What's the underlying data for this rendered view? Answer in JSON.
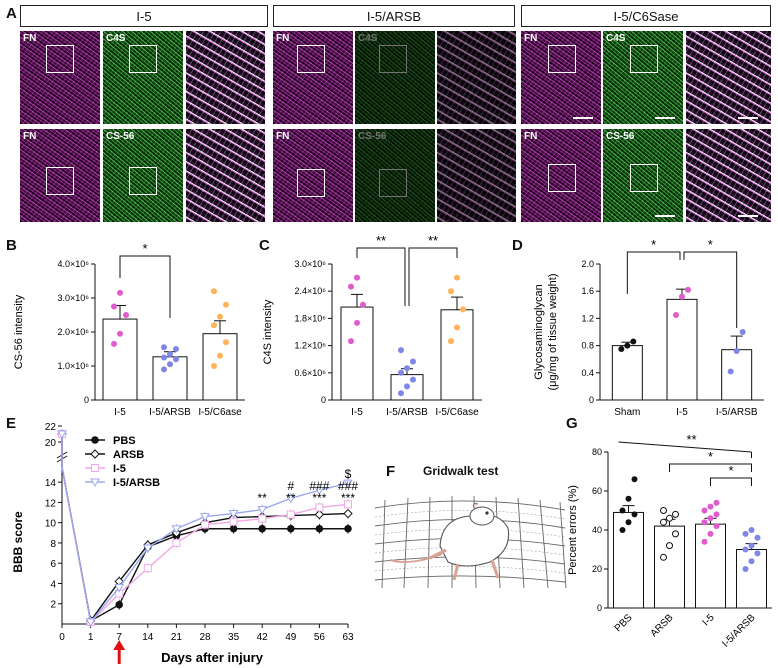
{
  "panel_letters": {
    "a": "A",
    "b": "B",
    "c": "C",
    "d": "D",
    "e": "E",
    "f": "F",
    "g": "G"
  },
  "panel_a": {
    "headers": [
      "I-5",
      "I-5/ARSB",
      "I-5/C6Sase"
    ],
    "labels": {
      "fn": "FN",
      "c4s": "C4S",
      "cs56": "CS-56"
    }
  },
  "panel_f": {
    "title": "Gridwalk test"
  },
  "chart_data": [
    {
      "id": "B",
      "type": "bar",
      "categories": [
        "I-5",
        "I-5/ARSB",
        "I-5/C6ase"
      ],
      "values": [
        2380000,
        1270000,
        1950000
      ],
      "errors": [
        400000,
        150000,
        380000
      ],
      "points": [
        [
          1650000,
          1950000,
          2500000,
          2750000,
          3150000
        ],
        [
          900000,
          1050000,
          1200000,
          1250000,
          1350000,
          1500000,
          1550000
        ],
        [
          1000000,
          1300000,
          1700000,
          2200000,
          2450000,
          2800000,
          3200000
        ]
      ],
      "ylabel": "CS-56 intensity",
      "yticks": [
        "0",
        "1.0×10⁶",
        "2.0×10⁶",
        "3.0×10⁶",
        "4.0×10⁶"
      ],
      "ylim": [
        0,
        4000000
      ],
      "annotations": [
        "*"
      ]
    },
    {
      "id": "C",
      "type": "bar",
      "categories": [
        "I-5",
        "I-5/ARSB",
        "I-5/C6ase"
      ],
      "values": [
        2050000,
        560000,
        1990000
      ],
      "errors": [
        280000,
        130000,
        280000
      ],
      "points": [
        [
          1300000,
          1700000,
          2100000,
          2500000,
          2700000
        ],
        [
          150000,
          300000,
          450000,
          600000,
          700000,
          850000,
          1100000
        ],
        [
          1300000,
          1600000,
          2000000,
          2400000,
          2700000
        ]
      ],
      "ylabel": "C4S intensity",
      "yticks": [
        "0",
        "0.6×10⁶",
        "1.2×10⁶",
        "1.8×10⁶",
        "2.4×10⁶",
        "3.0×10⁶"
      ],
      "ylim": [
        0,
        3000000
      ],
      "annotations": [
        "**",
        "**"
      ]
    },
    {
      "id": "D",
      "type": "bar",
      "categories": [
        "Sham",
        "I-5",
        "I-5/ARSB"
      ],
      "values": [
        0.8,
        1.48,
        0.74
      ],
      "errors": [
        0.05,
        0.15,
        0.2
      ],
      "points": [
        [
          0.75,
          0.8,
          0.86
        ],
        [
          1.25,
          1.52,
          1.62
        ],
        [
          0.42,
          0.72,
          1.0
        ]
      ],
      "ylabel": "Glycosaminoglycan",
      "ylabel2": "(μg/mg of tissue weight)",
      "yticks": [
        "0",
        "0.4",
        "0.8",
        "1.2",
        "1.6",
        "2.0"
      ],
      "ylim": [
        0,
        2.0
      ],
      "annotations": [
        "*",
        "*"
      ]
    },
    {
      "id": "E",
      "type": "line",
      "x": [
        0,
        1,
        7,
        14,
        21,
        28,
        35,
        42,
        49,
        56,
        63
      ],
      "xticks": [
        "0",
        "1",
        "7",
        "14",
        "21",
        "28",
        "35",
        "42",
        "49",
        "56",
        "63"
      ],
      "series": [
        {
          "name": "PBS",
          "values": [
            21,
            0.3,
            1.9,
            7.6,
            8.7,
            9.4,
            9.4,
            9.4,
            9.4,
            9.4,
            9.4
          ]
        },
        {
          "name": "ARSB",
          "values": [
            21,
            0.3,
            4.2,
            7.8,
            9.0,
            10.0,
            10.5,
            10.6,
            10.7,
            10.8,
            10.9
          ]
        },
        {
          "name": "I-5",
          "values": [
            21,
            0.2,
            3.0,
            5.5,
            8.0,
            9.8,
            10.1,
            10.4,
            10.8,
            11.5,
            11.8
          ]
        },
        {
          "name": "I-5/ARSB",
          "values": [
            21,
            0.2,
            3.6,
            7.5,
            9.4,
            10.6,
            10.9,
            11.3,
            12.4,
            13.2,
            13.9
          ]
        }
      ],
      "ylabel": "BBB score",
      "xlabel": "Days after injury",
      "yticks": [
        "2",
        "4",
        "6",
        "8",
        "10",
        "12",
        "14"
      ],
      "ytop_ticks": [
        "20",
        "22"
      ],
      "annotations": [
        {
          "x": 42,
          "lines": [
            "**"
          ]
        },
        {
          "x": 49,
          "lines": [
            "#",
            "**"
          ]
        },
        {
          "x": 56,
          "lines": [
            "###",
            "***"
          ]
        },
        {
          "x": 63,
          "lines": [
            "$",
            "###",
            "***"
          ]
        }
      ]
    },
    {
      "id": "G",
      "type": "bar",
      "categories": [
        "PBS",
        "ARSB",
        "I-5",
        "I-5/ARSB"
      ],
      "values": [
        49,
        42,
        43,
        30
      ],
      "errors": [
        3.5,
        3.5,
        3,
        3
      ],
      "points": [
        [
          40,
          44,
          48,
          50,
          56,
          66
        ],
        [
          26,
          32,
          38,
          44,
          46,
          48,
          50
        ],
        [
          34,
          38,
          42,
          44,
          46,
          48,
          50,
          52,
          54
        ],
        [
          20,
          24,
          28,
          30,
          32,
          36,
          38,
          40
        ]
      ],
      "ylabel": "Percent errors (%)",
      "yticks": [
        "0",
        "20",
        "40",
        "60",
        "80"
      ],
      "ylim": [
        0,
        80
      ],
      "annotations": [
        "**",
        "*",
        "*"
      ]
    }
  ],
  "colors": {
    "pink": "#e05ccc",
    "blue": "#7f86e8",
    "orange": "#ffb35a",
    "black": "#111111",
    "i5_line": "#f0a8e6",
    "i5arsb_line": "#9ea8ee",
    "arrow": "#e01010"
  }
}
